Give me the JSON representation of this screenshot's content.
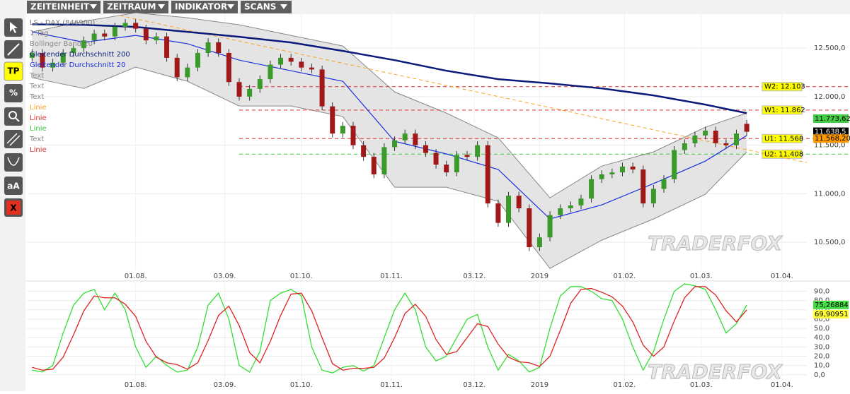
{
  "toolbar": {
    "tabs": [
      "ZEITEINHEIT",
      "ZEITRAUM",
      "INDIKATOR",
      "SCANS"
    ]
  },
  "tools": {
    "labels": [
      "TP",
      "%",
      "aA",
      "X"
    ]
  },
  "chart_data": [
    {
      "type": "candlestick",
      "title": "LS - DAX (846900)",
      "subtitle": "1 Tag",
      "open": [
        12400,
        12450,
        12300,
        12350,
        12450,
        12500,
        12580,
        12650,
        12620,
        12720,
        12760,
        12700,
        12580,
        12620,
        12400,
        12200,
        12300,
        12450,
        12560,
        12450,
        12150,
        12000,
        12080,
        12180,
        12330,
        12400,
        12360,
        12300,
        12280,
        11900,
        11620,
        11700,
        11500,
        11380,
        11200,
        11480,
        11550,
        11620,
        11500,
        11420,
        11300,
        11220,
        11400,
        11380,
        11500,
        10900,
        10700,
        10980,
        10850,
        10450,
        10550,
        10780,
        10850,
        10880,
        10950,
        11150,
        11200,
        11220,
        11280,
        11250,
        10900,
        11050,
        11150,
        11450,
        11520,
        11600,
        11650,
        11520,
        11500,
        11720
      ],
      "high": [
        12490,
        12490,
        12390,
        12490,
        12540,
        12620,
        12690,
        12690,
        12760,
        12800,
        12800,
        12740,
        12660,
        12660,
        12440,
        12340,
        12490,
        12600,
        12600,
        12490,
        12190,
        12120,
        12220,
        12370,
        12440,
        12440,
        12400,
        12340,
        12320,
        11940,
        11740,
        11740,
        11540,
        11420,
        11520,
        11590,
        11660,
        11660,
        11540,
        11460,
        11340,
        11440,
        11440,
        11540,
        11540,
        10940,
        11020,
        11020,
        10890,
        10590,
        10820,
        10890,
        10920,
        10990,
        11190,
        11240,
        11260,
        11320,
        11320,
        11290,
        11090,
        11190,
        11490,
        11560,
        11640,
        11690,
        11690,
        11560,
        11660,
        11760
      ],
      "low": [
        12360,
        12260,
        12260,
        12310,
        12410,
        12460,
        12540,
        12580,
        12580,
        12680,
        12660,
        12540,
        12540,
        12360,
        12160,
        12160,
        12260,
        12410,
        12410,
        12110,
        11960,
        11960,
        12040,
        12140,
        12290,
        12320,
        12260,
        12240,
        11860,
        11580,
        11580,
        11460,
        11340,
        11160,
        11160,
        11440,
        11510,
        11460,
        11380,
        11260,
        11180,
        11180,
        11340,
        11340,
        10860,
        10660,
        10660,
        10810,
        10410,
        10410,
        10510,
        10740,
        10810,
        10840,
        10910,
        11110,
        11160,
        11180,
        11210,
        10860,
        10860,
        11010,
        11110,
        11410,
        11480,
        11560,
        11480,
        11460,
        11460,
        11600
      ],
      "close": [
        12450,
        12300,
        12350,
        12450,
        12500,
        12580,
        12650,
        12620,
        12720,
        12760,
        12700,
        12580,
        12620,
        12400,
        12200,
        12300,
        12450,
        12560,
        12450,
        12150,
        12000,
        12080,
        12180,
        12330,
        12400,
        12360,
        12300,
        12280,
        11900,
        11620,
        11700,
        11500,
        11380,
        11200,
        11480,
        11550,
        11620,
        11500,
        11420,
        11300,
        11220,
        11400,
        11380,
        11500,
        10900,
        10700,
        10980,
        10850,
        10450,
        10550,
        10780,
        10850,
        10880,
        10950,
        11150,
        11200,
        11220,
        11280,
        11250,
        10900,
        11050,
        11150,
        11450,
        11520,
        11600,
        11650,
        11520,
        11500,
        11620,
        11638.5
      ],
      "up_color": "#3a9a2a",
      "down_color": "#a01818",
      "xlim": [
        -0.5,
        74.8
      ],
      "xticks": [
        {
          "value": 10.0,
          "label": "01.08."
        },
        {
          "value": 18.6,
          "label": "03.09."
        },
        {
          "value": 26.0,
          "label": "01.10."
        },
        {
          "value": 34.7,
          "label": "01.11."
        },
        {
          "value": 42.7,
          "label": "03.12."
        },
        {
          "value": 49.0,
          "label": "2019"
        },
        {
          "value": 57.2,
          "label": "01.02."
        },
        {
          "value": 64.6,
          "label": "01.03."
        },
        {
          "value": 72.4,
          "label": "01.04."
        }
      ],
      "ylim": [
        10210,
        12850
      ],
      "yticks": [
        {
          "value": 10500,
          "label": "10.500,0"
        },
        {
          "value": 11000,
          "label": "11.000,0"
        },
        {
          "value": 11500,
          "label": "11.500,0"
        },
        {
          "value": 12000,
          "label": "12.000,0"
        },
        {
          "value": 12500,
          "label": "12.500,0"
        }
      ],
      "grid": true,
      "band": {
        "name": "Bollinger Band 20",
        "color": "#888888",
        "fill": "#e4e4e4",
        "x": [
          0,
          5,
          10,
          15,
          20,
          25,
          30,
          35,
          40,
          45,
          50,
          55,
          60,
          65,
          69
        ],
        "upper": [
          12667,
          12776,
          12864,
          12813,
          12740,
          12631,
          12522,
          12049,
          11831,
          11576,
          10958,
          11285,
          11431,
          11685,
          11831
        ],
        "lower": [
          12195,
          12085,
          12304,
          12158,
          11904,
          11904,
          11795,
          11067,
          11067,
          10922,
          10231,
          10522,
          10740,
          10995,
          11431
        ]
      },
      "series": [
        {
          "name": "Gleitender Durchschnitt 200",
          "color": "#0a1a7a",
          "width": 2.5,
          "x": [
            0,
            5,
            10,
            15,
            20,
            25,
            30,
            35,
            40,
            45,
            50,
            55,
            60,
            65,
            69
          ],
          "values": [
            12745,
            12740,
            12718,
            12667,
            12616,
            12558,
            12471,
            12376,
            12267,
            12180,
            12136,
            12085,
            12013,
            11918,
            11830
          ]
        },
        {
          "name": "Gleitender Durchschnitt 20",
          "color": "#1a2ee0",
          "width": 1.2,
          "x": [
            0,
            5,
            10,
            15,
            20,
            25,
            30,
            35,
            40,
            45,
            50,
            55,
            60,
            65,
            69
          ],
          "values": [
            12667,
            12560,
            12631,
            12545,
            12376,
            12267,
            12158,
            11540,
            11410,
            11250,
            10740,
            10885,
            11105,
            11336,
            11600
          ]
        }
      ],
      "levels": [
        {
          "label": "W2: 12.103",
          "value": 12103,
          "color": "#e03030"
        },
        {
          "label": "W1: 11.862",
          "value": 11862,
          "color": "#e03030"
        },
        {
          "label": "U1: 11.568",
          "value": 11568,
          "color": "#e03030"
        },
        {
          "label": "U2: 11.408",
          "value": 11408,
          "color": "#33cc33"
        }
      ],
      "trendline": {
        "color": "#ffa020",
        "x": [
          8.5,
          74.8
        ],
        "values": [
          12835,
          11321
        ]
      },
      "annotations": [
        {
          "text": "Text",
          "color": "#888888"
        },
        {
          "text": "Text",
          "color": "#888888"
        },
        {
          "text": "Text",
          "color": "#888888"
        },
        {
          "text": "Linie",
          "color": "#ffa020"
        },
        {
          "text": "Linie",
          "color": "#e03030"
        },
        {
          "text": "Linie",
          "color": "#33cc33"
        },
        {
          "text": "Text",
          "color": "#888888"
        },
        {
          "text": "Linie",
          "color": "#e03030"
        }
      ],
      "price_tags": [
        {
          "value": 11773.62,
          "label": "11.773,62",
          "color": "#44cc44",
          "text_color": "#000000"
        },
        {
          "value": 11638.5,
          "label": "11.638,5",
          "color": "#000000",
          "text_color": "#ffffff"
        },
        {
          "value": 11568.2,
          "label": "11.568,20",
          "color": "#ff9900",
          "text_color": "#000000"
        }
      ],
      "watermark": "TRADERFOX"
    },
    {
      "type": "line",
      "xlim": [
        -0.5,
        74.8
      ],
      "xticks": [
        {
          "value": 10.0,
          "label": "01.08."
        },
        {
          "value": 18.6,
          "label": "03.09."
        },
        {
          "value": 26.0,
          "label": "01.10."
        },
        {
          "value": 34.7,
          "label": "01.11."
        },
        {
          "value": 42.7,
          "label": "03.12."
        },
        {
          "value": 49.0,
          "label": "2019"
        },
        {
          "value": 57.2,
          "label": "01.02."
        },
        {
          "value": 64.6,
          "label": "01.03."
        },
        {
          "value": 72.4,
          "label": "01.04."
        }
      ],
      "ylim": [
        -7,
        98
      ],
      "yticks": [
        {
          "value": 0,
          "label": "0,0"
        },
        {
          "value": 10,
          "label": "10,0"
        },
        {
          "value": 20,
          "label": "20,0"
        },
        {
          "value": 30,
          "label": "30,0"
        },
        {
          "value": 40,
          "label": "40,0"
        },
        {
          "value": 50,
          "label": "50,0"
        },
        {
          "value": 60,
          "label": "60,0"
        },
        {
          "value": 70,
          "label": "70,0"
        },
        {
          "value": 80,
          "label": "80,0"
        },
        {
          "value": 90,
          "label": "90,0"
        }
      ],
      "grid": true,
      "series": [
        {
          "color": "#33dd33",
          "tag_color": "#44dd44",
          "values": [
            5,
            3,
            10,
            45,
            75,
            88,
            92,
            70,
            88,
            70,
            30,
            8,
            20,
            10,
            3,
            5,
            30,
            75,
            88,
            60,
            10,
            3,
            25,
            80,
            88,
            92,
            85,
            30,
            5,
            2,
            8,
            10,
            4,
            10,
            40,
            70,
            88,
            70,
            30,
            15,
            20,
            40,
            60,
            65,
            30,
            5,
            22,
            15,
            3,
            8,
            50,
            85,
            95,
            95,
            90,
            82,
            80,
            60,
            30,
            5,
            25,
            60,
            90,
            98,
            96,
            92,
            70,
            45,
            55,
            75.26884
          ],
          "value_labels": [
            null,
            null,
            null,
            null,
            null,
            null,
            null,
            null,
            null,
            null,
            null,
            null,
            null,
            null,
            null,
            null,
            null,
            null,
            null,
            null,
            null,
            null,
            null,
            null,
            null,
            null,
            null,
            null,
            null,
            null,
            null,
            null,
            null,
            null,
            null,
            null,
            null,
            null,
            null,
            null,
            null,
            null,
            null,
            null,
            null,
            null,
            null,
            null,
            null,
            null,
            null,
            null,
            null,
            null,
            null,
            null,
            null,
            null,
            null,
            null,
            null,
            null,
            null,
            null,
            null,
            null,
            null,
            null,
            null,
            "75,26884"
          ]
        },
        {
          "color": "#dd2222",
          "tag_color": "#ffff33",
          "values": [
            8,
            5,
            6,
            19,
            43,
            69,
            85,
            83,
            83,
            76,
            63,
            36,
            19,
            13,
            11,
            6,
            13,
            37,
            64,
            74,
            53,
            24,
            13,
            36,
            64,
            87,
            88,
            69,
            40,
            12,
            5,
            7,
            7,
            8,
            18,
            40,
            66,
            76,
            63,
            38,
            22,
            25,
            40,
            55,
            52,
            33,
            19,
            14,
            13,
            9,
            20,
            48,
            77,
            92,
            93,
            89,
            84,
            74,
            57,
            32,
            20,
            30,
            58,
            83,
            95,
            95,
            86,
            69,
            57,
            69.90951
          ],
          "value_labels": [
            null,
            null,
            null,
            null,
            null,
            null,
            null,
            null,
            null,
            null,
            null,
            null,
            null,
            null,
            null,
            null,
            null,
            null,
            null,
            null,
            null,
            null,
            null,
            null,
            null,
            null,
            null,
            null,
            null,
            null,
            null,
            null,
            null,
            null,
            null,
            null,
            null,
            null,
            null,
            null,
            null,
            null,
            null,
            null,
            null,
            null,
            null,
            null,
            null,
            null,
            null,
            null,
            null,
            null,
            null,
            null,
            null,
            null,
            null,
            null,
            null,
            null,
            null,
            null,
            null,
            null,
            null,
            null,
            null,
            "69,90951"
          ]
        }
      ],
      "watermark": "TRADERFOX"
    }
  ]
}
